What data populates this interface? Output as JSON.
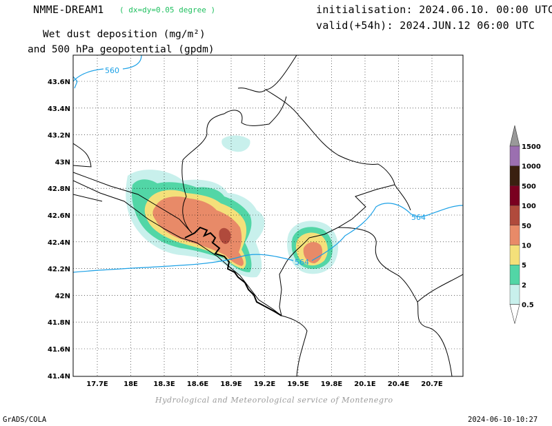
{
  "header": {
    "model": "NMME-DREAM1",
    "resolution": "( dx=dy=0.05 degree )",
    "init": "initialisation: 2024.06.10. 00:00 UTC",
    "valid": "valid(+54h): 2024.JUN.12 06:00 UTC",
    "title_line1": "Wet dust deposition (mg/m²)",
    "title_line2": "and 500 hPa geopotential (gpdm)"
  },
  "map": {
    "lon_labels": [
      "17.7E",
      "18E",
      "18.3E",
      "18.6E",
      "18.9E",
      "19.2E",
      "19.5E",
      "19.8E",
      "20.1E",
      "20.4E",
      "20.7E"
    ],
    "lat_labels": [
      "43.6N",
      "43.4N",
      "43.2N",
      "43N",
      "42.8N",
      "42.6N",
      "42.4N",
      "42.2N",
      "42N",
      "41.8N",
      "41.6N",
      "41.4N"
    ],
    "contour_labels": [
      "560",
      "564",
      "564"
    ],
    "contour_color": "#1aa0e6"
  },
  "legend": {
    "levels": [
      "1500",
      "1000",
      "500",
      "100",
      "50",
      "10",
      "5",
      "2",
      "0.5"
    ],
    "colors": [
      "#999999",
      "#9b6fb0",
      "#3a2010",
      "#7a0020",
      "#b04a3c",
      "#e88a68",
      "#f4e07a",
      "#52d6a6",
      "#c8f0ec"
    ]
  },
  "footer": {
    "credit": "Hydrological and Meteorological service of Montenegro",
    "left": "GrADS/COLA",
    "right": "2024-06-10-10:27"
  }
}
